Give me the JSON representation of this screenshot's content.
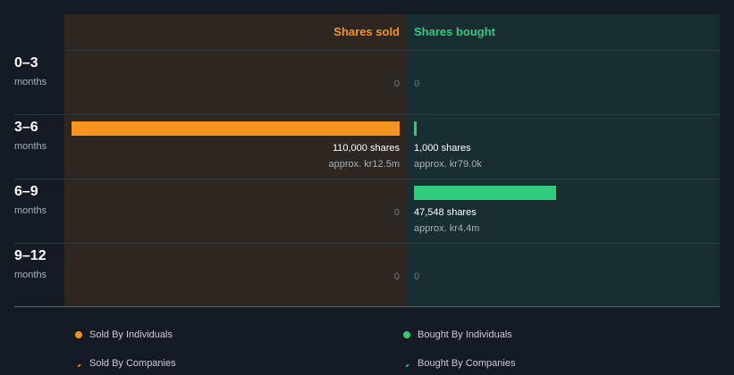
{
  "colors": {
    "sold": "#f7941e",
    "bought": "#2ecc7d"
  },
  "headers": {
    "sold": "Shares sold",
    "bought": "Shares bought"
  },
  "chart_data": {
    "type": "bar",
    "categories": [
      "0–3 months",
      "3–6 months",
      "6–9 months",
      "9–12 months"
    ],
    "series": [
      {
        "name": "Shares sold",
        "values": [
          0,
          110000,
          0,
          0
        ]
      },
      {
        "name": "Shares bought",
        "values": [
          0,
          1000,
          47548,
          0
        ]
      }
    ],
    "scale_max": 110000
  },
  "rows": [
    {
      "period": "0–3",
      "unit": "months",
      "sold": {
        "zero": "0"
      },
      "bought": {
        "zero": "0"
      }
    },
    {
      "period": "3–6",
      "unit": "months",
      "sold": {
        "shares": "110,000 shares",
        "approx": "approx. kr12.5m"
      },
      "bought": {
        "shares": "1,000 shares",
        "approx": "approx. kr79.0k"
      }
    },
    {
      "period": "6–9",
      "unit": "months",
      "sold": {
        "zero": "0"
      },
      "bought": {
        "shares": "47,548 shares",
        "approx": "approx. kr4.4m"
      }
    },
    {
      "period": "9–12",
      "unit": "months",
      "sold": {
        "zero": "0"
      },
      "bought": {
        "zero": "0"
      }
    }
  ],
  "legend": {
    "sold_individuals": "Sold By Individuals",
    "bought_individuals": "Bought By Individuals",
    "sold_companies": "Sold By Companies",
    "bought_companies": "Bought By Companies"
  }
}
